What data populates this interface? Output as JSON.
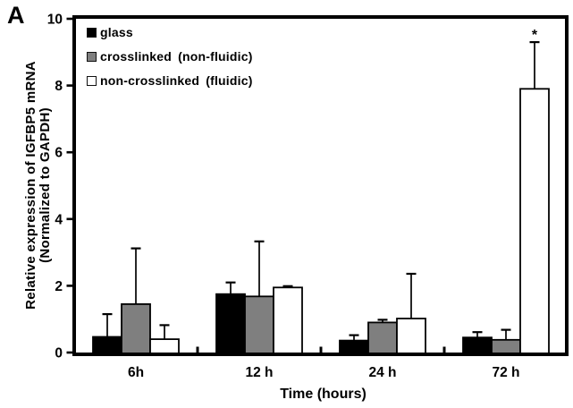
{
  "panel_label": "A",
  "chart_data": {
    "type": "bar",
    "title": "",
    "xlabel": "Time (hours)",
    "ylabel_line1": "Relative expression of IGFBP5 mRNA",
    "ylabel_line2": "(Normalized to GAPDH)",
    "categories": [
      "6h",
      "12 h",
      "24 h",
      "72 h"
    ],
    "ylim": [
      0,
      10
    ],
    "yticks": [
      0,
      2,
      4,
      6,
      8,
      10
    ],
    "grid": false,
    "legend_position": "top-left-inside",
    "error_bars": "upper-only",
    "series": [
      {
        "name": "glass",
        "color": "#000000",
        "values": [
          0.47,
          1.75,
          0.36,
          0.45
        ],
        "errors_plus": [
          0.68,
          0.35,
          0.16,
          0.16
        ]
      },
      {
        "name": "crosslinked (non-fluidic)",
        "color": "#7f7f7f",
        "values": [
          1.45,
          1.68,
          0.9,
          0.38
        ],
        "errors_plus": [
          1.67,
          1.65,
          0.08,
          0.3
        ]
      },
      {
        "name": "non-crosslinked (fluidic)",
        "color": "#ffffff",
        "values": [
          0.4,
          1.95,
          1.02,
          7.9
        ],
        "errors_plus": [
          0.42,
          0.04,
          1.34,
          1.4
        ]
      }
    ],
    "annotations": [
      {
        "text": "*",
        "series_index": 2,
        "category_index": 3,
        "placement": "above-error-bar"
      }
    ]
  },
  "colors": {
    "frame": "#000000",
    "background": "#ffffff",
    "text": "#000000"
  }
}
